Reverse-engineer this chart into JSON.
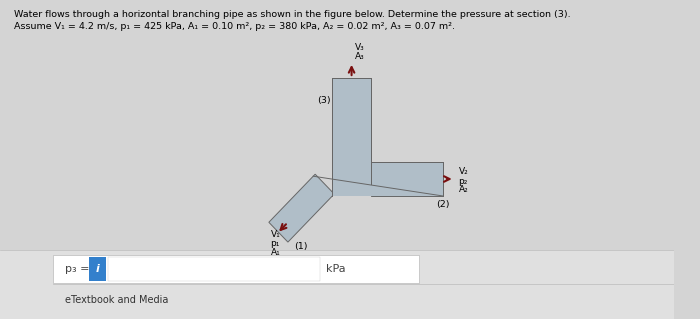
{
  "title_line1": "Water flows through a horizontal branching pipe as shown in the figure below. Determine the pressure at section (3).",
  "title_line2": "Assume V₁ = 4.2 m/s, p₁ = 425 kPa, A₁ = 0.10 m², p₂ = 380 kPa, A₂ = 0.02 m², A₃ = 0.07 m².",
  "bg_color": "#d4d4d4",
  "pipe_color": "#b0bec8",
  "pipe_edge_color": "#666666",
  "arrow_up_color": "#7a1010",
  "arrow_right_color": "#7a1010",
  "arrow_diag_color": "#7a1010",
  "label_p3": "p₃ =",
  "label_kpa": "kPa",
  "input_box_color": "#3380cc",
  "footer_text": "eTextbook and Media",
  "input_box_label": "i",
  "bottom_bg": "#e8e8e8"
}
